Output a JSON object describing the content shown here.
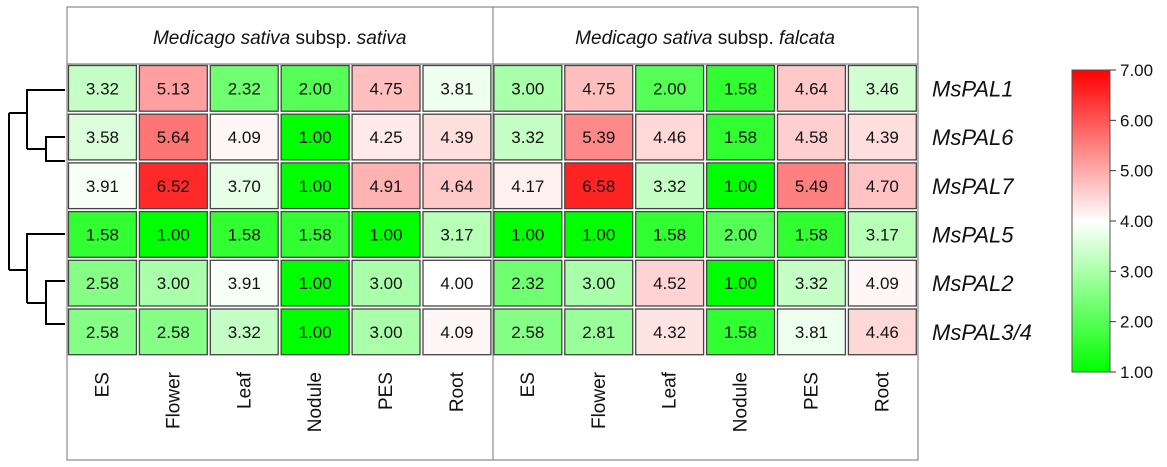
{
  "chart_data": {
    "type": "heatmap",
    "groups": [
      {
        "name_parts": [
          {
            "text": "Medicago sativa",
            "italic": true
          },
          {
            "text": " subsp. ",
            "italic": false
          },
          {
            "text": "sativa",
            "italic": true
          }
        ]
      },
      {
        "name_parts": [
          {
            "text": "Medicago sativa",
            "italic": true
          },
          {
            "text": " subsp. ",
            "italic": false
          },
          {
            "text": "falcata",
            "italic": true
          }
        ]
      }
    ],
    "columns": [
      "ES",
      "Flower",
      "Leaf",
      "Nodule",
      "PES",
      "Root",
      "ES",
      "Flower",
      "Leaf",
      "Nodule",
      "PES",
      "Root"
    ],
    "rows": [
      "MsPAL1",
      "MsPAL6",
      "MsPAL7",
      "MsPAL5",
      "MsPAL2",
      "MsPAL3/4"
    ],
    "values": [
      [
        "3.32",
        "5.13",
        "2.32",
        "2.00",
        "4.75",
        "3.81",
        "3.00",
        "4.75",
        "2.00",
        "1.58",
        "4.64",
        "3.46"
      ],
      [
        "3.58",
        "5.64",
        "4.09",
        "1.00",
        "4.25",
        "4.39",
        "3.32",
        "5.39",
        "4.46",
        "1.58",
        "4.58",
        "4.39"
      ],
      [
        "3.91",
        "6.52",
        "3.70",
        "1.00",
        "4.91",
        "4.64",
        "4.17",
        "6.58",
        "3.32",
        "1.00",
        "5.49",
        "4.70"
      ],
      [
        "1.58",
        "1.00",
        "1.58",
        "1.58",
        "1.00",
        "3.17",
        "1.00",
        "1.00",
        "1.58",
        "2.00",
        "1.58",
        "3.17"
      ],
      [
        "2.58",
        "3.00",
        "3.91",
        "1.00",
        "3.00",
        "4.00",
        "2.32",
        "3.00",
        "4.52",
        "1.00",
        "3.32",
        "4.09"
      ],
      [
        "2.58",
        "2.58",
        "3.32",
        "1.00",
        "3.00",
        "4.09",
        "2.58",
        "2.81",
        "4.32",
        "1.58",
        "3.81",
        "4.46"
      ]
    ],
    "colorbar": {
      "min": 1.0,
      "max": 7.0,
      "ticks": [
        "7.00",
        "6.00",
        "5.00",
        "4.00",
        "3.00",
        "2.00",
        "1.00"
      ],
      "colors": {
        "low": "#00ff00",
        "mid": "#ffffff",
        "high": "#ff0000"
      }
    },
    "dendrogram": "row-clustering"
  }
}
